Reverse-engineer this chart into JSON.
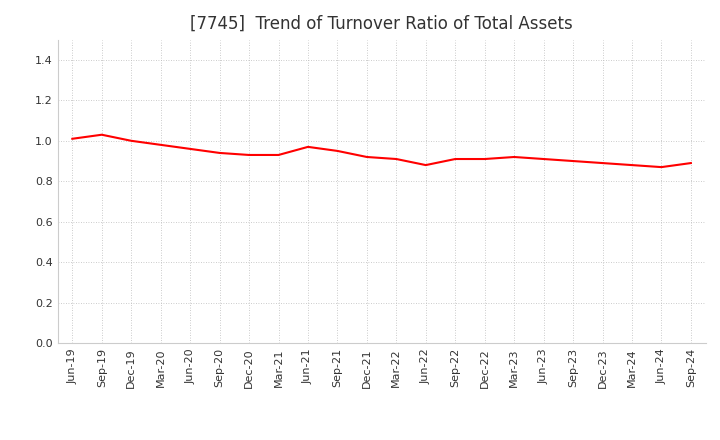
{
  "title": "[7745]  Trend of Turnover Ratio of Total Assets",
  "x_labels": [
    "Jun-19",
    "Sep-19",
    "Dec-19",
    "Mar-20",
    "Jun-20",
    "Sep-20",
    "Dec-20",
    "Mar-21",
    "Jun-21",
    "Sep-21",
    "Dec-21",
    "Mar-22",
    "Jun-22",
    "Sep-22",
    "Dec-22",
    "Mar-23",
    "Jun-23",
    "Sep-23",
    "Dec-23",
    "Mar-24",
    "Jun-24",
    "Sep-24"
  ],
  "y_values": [
    1.01,
    1.03,
    1.0,
    0.98,
    0.96,
    0.94,
    0.93,
    0.93,
    0.97,
    0.95,
    0.92,
    0.91,
    0.88,
    0.91,
    0.91,
    0.92,
    0.91,
    0.9,
    0.89,
    0.88,
    0.87,
    0.89
  ],
  "line_color": "#FF0000",
  "line_width": 1.5,
  "ylim": [
    0.0,
    1.5
  ],
  "yticks": [
    0.0,
    0.2,
    0.4,
    0.6,
    0.8,
    1.0,
    1.2,
    1.4
  ],
  "background_color": "#FFFFFF",
  "plot_bg_color": "#FFFFFF",
  "grid_color": "#BBBBBB",
  "title_fontsize": 12,
  "tick_fontsize": 8,
  "title_color": "#333333"
}
